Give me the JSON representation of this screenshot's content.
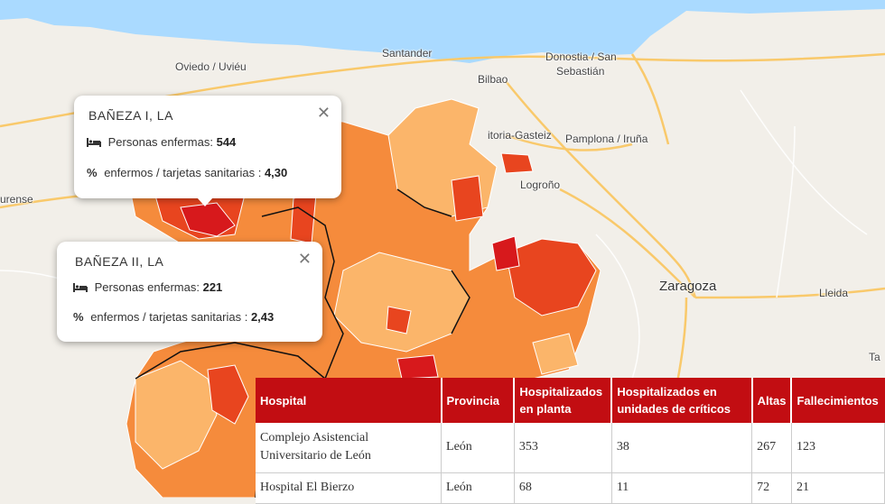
{
  "map": {
    "cities": [
      {
        "id": "santander",
        "name": "Santander"
      },
      {
        "id": "bilbao",
        "name": "Bilbao"
      },
      {
        "id": "donostia",
        "name": "Donostia / San"
      },
      {
        "id": "donostia2",
        "name": "Sebastián"
      },
      {
        "id": "oviedo",
        "name": "Oviedo / Uviéu"
      },
      {
        "id": "vitoria",
        "name": "itoria-Gasteiz"
      },
      {
        "id": "pamplona",
        "name": "Pamplona / Iruña"
      },
      {
        "id": "logrono",
        "name": "Logroño"
      },
      {
        "id": "zaragoza",
        "name": "Zaragoza"
      },
      {
        "id": "lleida",
        "name": "Lleida"
      },
      {
        "id": "ourense",
        "name": "urense"
      },
      {
        "id": "ta",
        "name": "Ta"
      }
    ],
    "colors": {
      "sea": "#aadaff",
      "land": "#f2efe9",
      "light": "#fbb56a",
      "mid": "#f58b3c",
      "dark": "#e8451f",
      "darkest": "#d7191c",
      "road": "#f9c96b"
    }
  },
  "popups": [
    {
      "id": "baneza1",
      "title": "BAÑEZA I, LA",
      "close": "✕",
      "enfermos_label": "Personas enfermas:",
      "enfermos_value": "544",
      "ratio_label": "enfermos / tarjetas sanitarias :",
      "ratio_value": "4,30"
    },
    {
      "id": "baneza2",
      "title": "BAÑEZA II, LA",
      "close": "✕",
      "enfermos_label": "Personas enfermas:",
      "enfermos_value": "221",
      "ratio_label": "enfermos / tarjetas sanitarias :",
      "ratio_value": "2,43"
    }
  ],
  "table": {
    "headers": [
      "Hospital",
      "Provincia",
      "Hospitalizados en planta",
      "Hospitalizados en unidades de críticos",
      "Altas",
      "Fallecimientos"
    ],
    "rows": [
      {
        "hospital": "Complejo Asistencial Universitario de León",
        "provincia": "León",
        "planta": "353",
        "criticos": "38",
        "altas": "267",
        "fallecimientos": "123"
      },
      {
        "hospital": "Hospital El Bierzo",
        "provincia": "León",
        "planta": "68",
        "criticos": "11",
        "altas": "72",
        "fallecimientos": "21"
      }
    ]
  }
}
